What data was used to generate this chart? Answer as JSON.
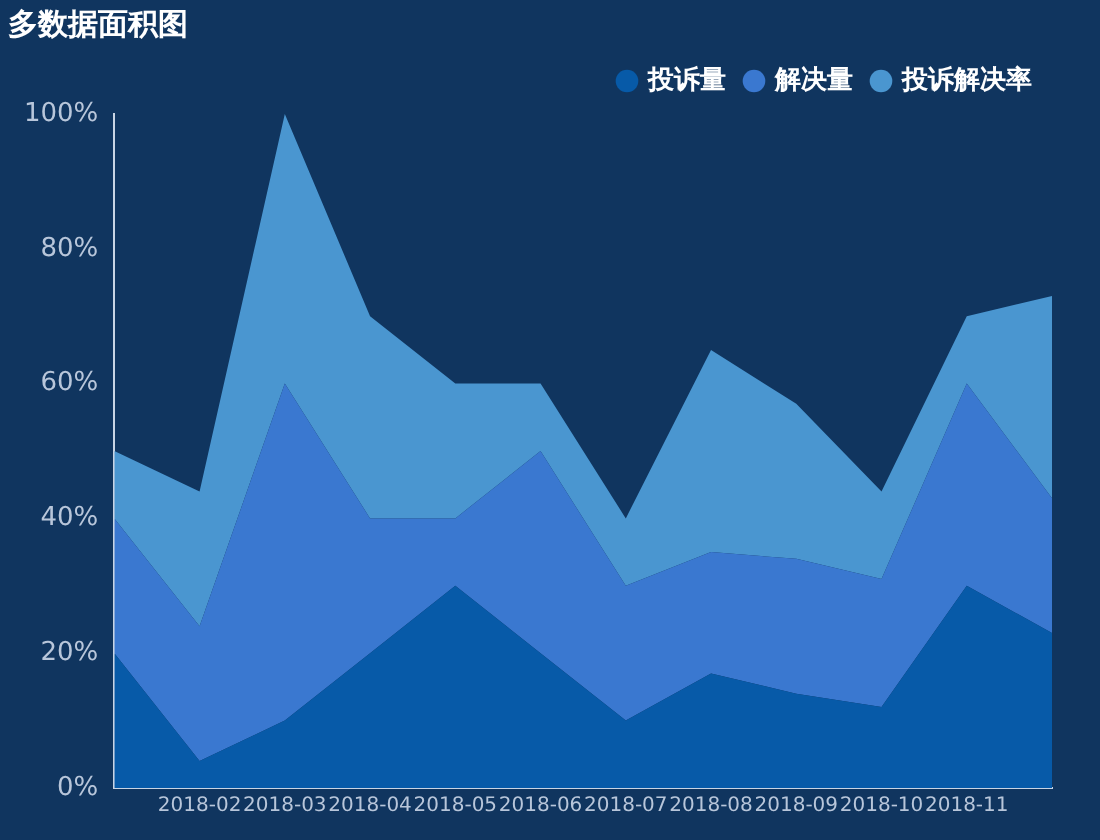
{
  "chart_data": {
    "type": "area",
    "title": "多数据面积图",
    "stacked": true,
    "categories": [
      null,
      "2018-02",
      "2018-03",
      "2018-04",
      "2018-05",
      "2018-06",
      "2018-07",
      "2018-08",
      "2018-09",
      "2018-10",
      "2018-11",
      null
    ],
    "series": [
      {
        "name": "投诉量",
        "color": "#075aa8",
        "values": [
          20,
          4,
          10,
          20,
          30,
          20,
          10,
          17,
          14,
          12,
          30,
          23
        ]
      },
      {
        "name": "解决量",
        "color": "#3a78d0",
        "values": [
          20,
          20,
          50,
          20,
          10,
          30,
          20,
          18,
          20,
          19,
          30,
          20
        ]
      },
      {
        "name": "投诉解决率",
        "color": "#4a96d0",
        "values": [
          10,
          20,
          40,
          30,
          20,
          10,
          10,
          30,
          23,
          13,
          10,
          30
        ]
      }
    ],
    "ylim": [
      0,
      100
    ],
    "yticks": [
      {
        "value": 0,
        "label": "0%"
      },
      {
        "value": 20,
        "label": "20%"
      },
      {
        "value": 40,
        "label": "40%"
      },
      {
        "value": 60,
        "label": "60%"
      },
      {
        "value": 80,
        "label": "80%"
      },
      {
        "value": 100,
        "label": "100%"
      }
    ],
    "grid": false,
    "legend": "top right",
    "marker": "none"
  }
}
